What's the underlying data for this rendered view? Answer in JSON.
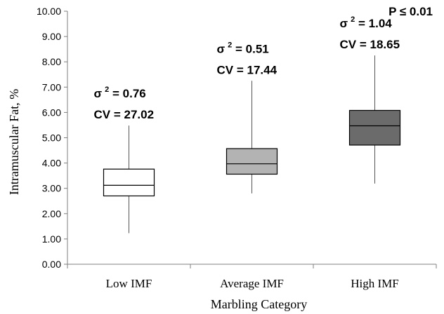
{
  "chart_data": {
    "type": "box",
    "title": "",
    "xlabel": "Marbling Category",
    "ylabel": "Intramuscular Fat, %",
    "ylim": [
      0,
      10
    ],
    "yticks": [
      "0.00",
      "1.00",
      "2.00",
      "3.00",
      "4.00",
      "5.00",
      "6.00",
      "7.00",
      "8.00",
      "9.00",
      "10.00"
    ],
    "grid": false,
    "categories": [
      "Low IMF",
      "Average IMF",
      "High IMF"
    ],
    "boxes": [
      {
        "category": "Low IMF",
        "min": 1.23,
        "q1": 2.7,
        "median": 3.12,
        "q3": 3.76,
        "max": 5.48,
        "fill": "#ffffff",
        "sigma_label": "σ",
        "sigma_sup": "2",
        "sigma_value": " = 0.76",
        "cv": "CV = 27.02"
      },
      {
        "category": "Average IMF",
        "min": 2.8,
        "q1": 3.56,
        "median": 3.97,
        "q3": 4.57,
        "max": 7.25,
        "fill": "#b3b3b3",
        "sigma_label": "σ",
        "sigma_sup": "2",
        "sigma_value": " = 0.51",
        "cv": "CV = 17.44"
      },
      {
        "category": "High IMF",
        "min": 3.19,
        "q1": 4.71,
        "median": 5.47,
        "q3": 6.08,
        "max": 8.25,
        "fill": "#6b6b6b",
        "sigma_label": "σ",
        "sigma_sup": "2",
        "sigma_value": " = 1.04",
        "cv": "CV = 18.65"
      }
    ],
    "annotation": "P ≤ 0.01"
  }
}
